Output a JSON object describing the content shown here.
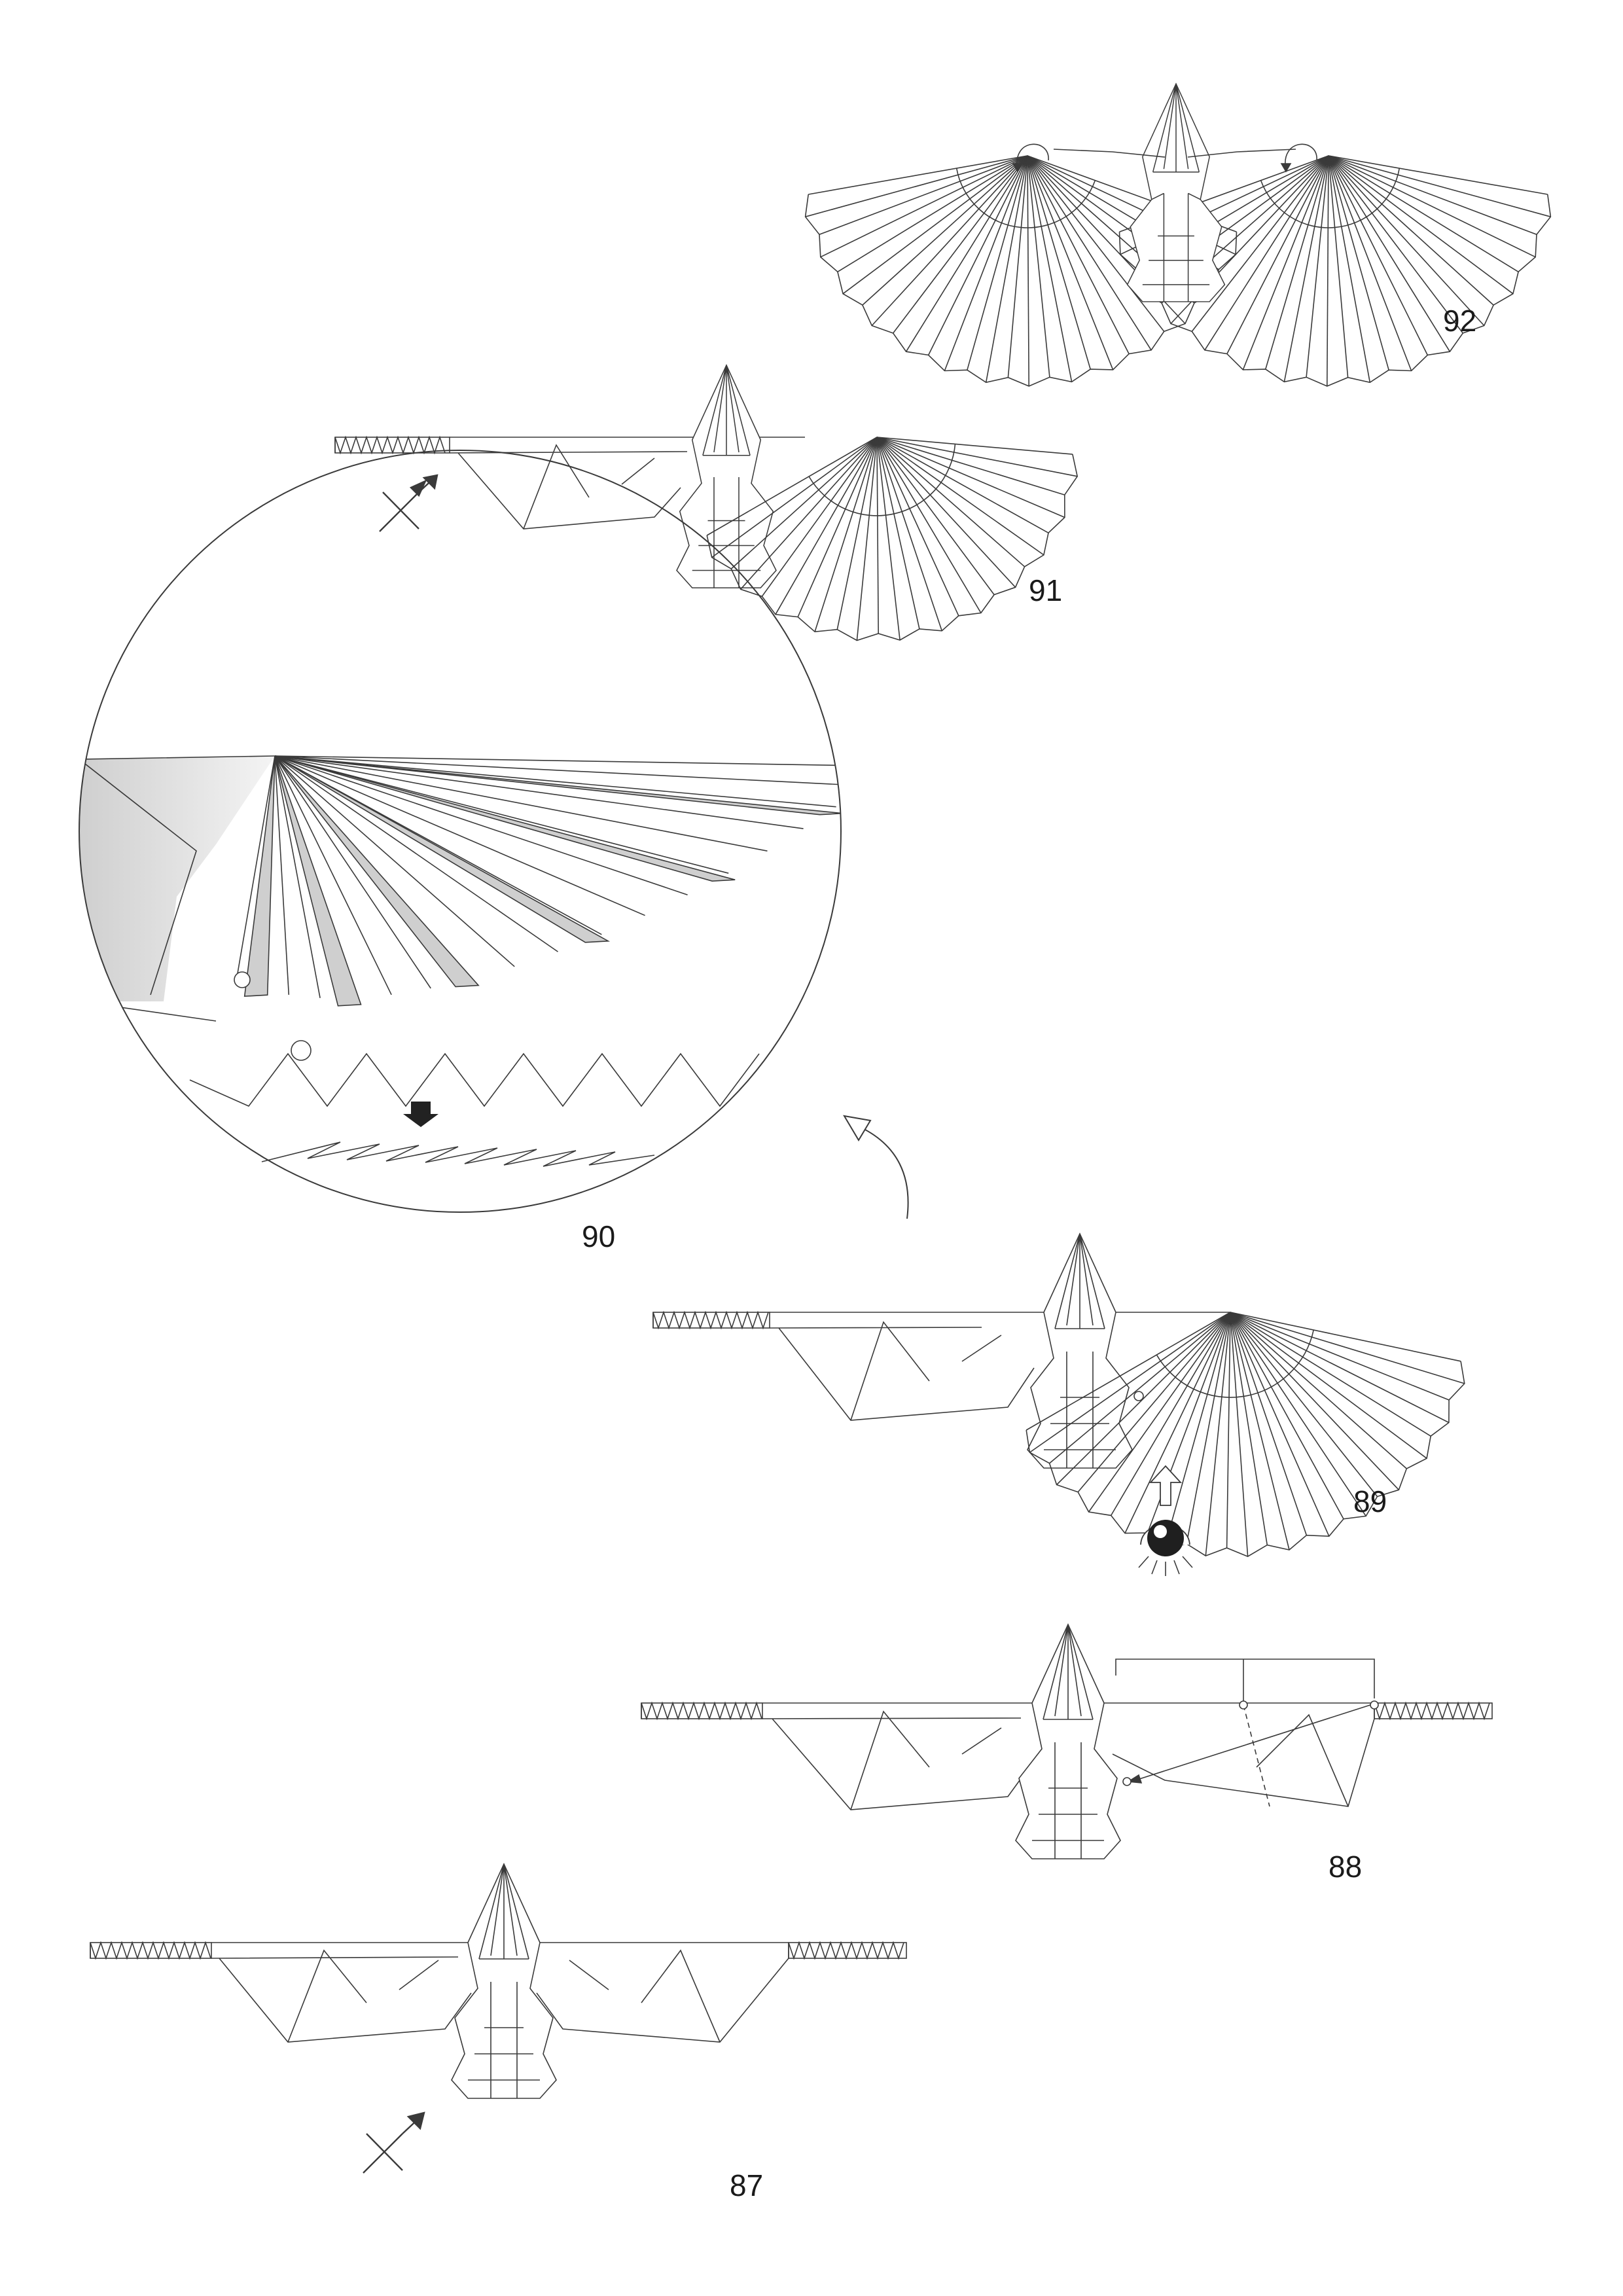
{
  "page": {
    "background": "#ffffff",
    "line_color": "#3a3a3a",
    "shade_color": "#d9d9d9"
  },
  "steps": [
    {
      "id": "87",
      "label": "87",
      "symbols": [
        "flip-over-arrow-icon"
      ]
    },
    {
      "id": "88",
      "label": "88",
      "symbols": [
        "measure-bracket",
        "reference-point-icon"
      ]
    },
    {
      "id": "89",
      "label": "89",
      "symbols": [
        "view-direction-eye-icon",
        "view-arrow-icon"
      ]
    },
    {
      "id": "90",
      "label": "90",
      "symbols": [
        "zoom-circle",
        "reference-point-icon",
        "push-down-arrow-icon",
        "pleat-profile"
      ]
    },
    {
      "id": "91",
      "label": "91",
      "symbols": [
        "flip-over-arrow-icon"
      ]
    },
    {
      "id": "92",
      "label": "92",
      "symbols": [
        "rotate-arrow-icon",
        "rotate-arrow-icon"
      ]
    }
  ]
}
